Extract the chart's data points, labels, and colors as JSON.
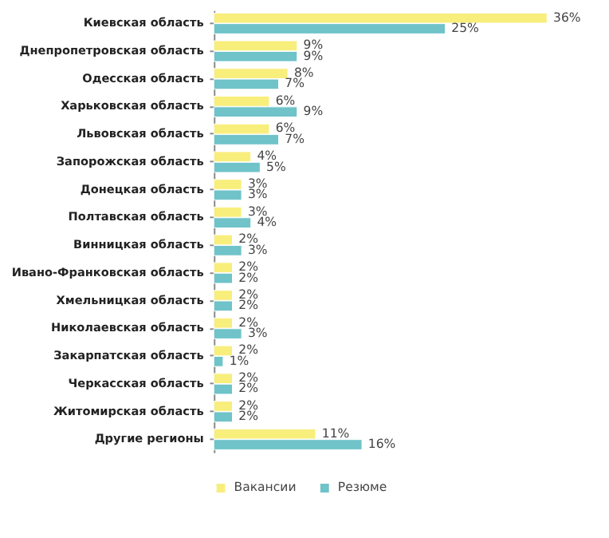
{
  "chart_data": {
    "type": "bar",
    "orientation": "horizontal",
    "legend": "bottom",
    "categories": [
      "Киевская  область",
      "Днепропетровская  область",
      "Одесская  область",
      "Харьковская  область",
      "Львовская  область",
      "Запорожская  область",
      "Донецкая  область",
      "Полтавская  область",
      "Винницкая  область",
      "Ивано-Франковская  область",
      "Хмельницкая  область",
      "Николаевская  область",
      "Закарпатская  область",
      "Черкасская  область",
      "Житомирская  область",
      "Другие регионы"
    ],
    "series": [
      {
        "name": "Вакансии",
        "color": "#f8ee7c",
        "values": [
          36,
          9,
          8,
          6,
          6,
          4,
          3,
          3,
          2,
          2,
          2,
          2,
          2,
          2,
          2,
          11
        ],
        "value_labels": [
          "36%",
          "9%",
          "8%",
          "6%",
          "6%",
          "4%",
          "3%",
          "3%",
          "2%",
          "2%",
          "2%",
          "2%",
          "2%",
          "2%",
          "2%",
          "11%"
        ]
      },
      {
        "name": "Резюме",
        "color": "#6fc3c9",
        "values": [
          25,
          9,
          7,
          9,
          7,
          5,
          3,
          4,
          3,
          2,
          2,
          3,
          1,
          2,
          2,
          16
        ],
        "value_labels": [
          "25%",
          "9%",
          "7%",
          "9%",
          "7%",
          "5%",
          "3%",
          "4%",
          "3%",
          "2%",
          "2%",
          "3%",
          "1%",
          "2%",
          "2%",
          "16%"
        ]
      }
    ]
  }
}
